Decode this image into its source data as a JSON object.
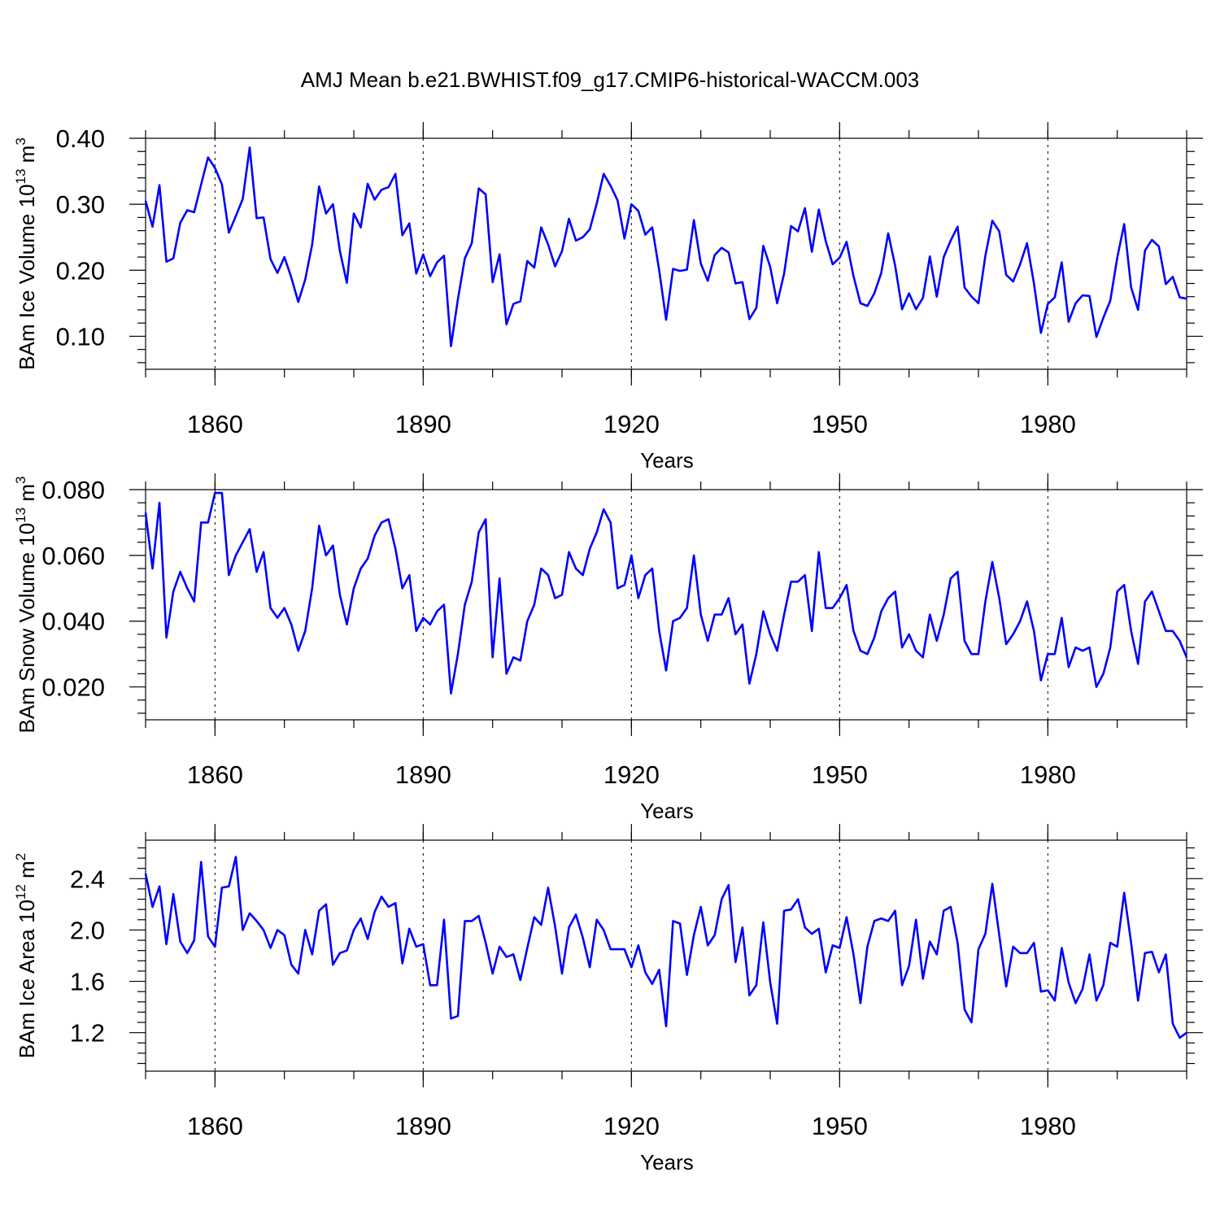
{
  "title": "AMJ Mean b.e21.BWHIST.f09_g17.CMIP6-historical-WACCM.003",
  "chart_data": [
    {
      "type": "line",
      "title": "AMJ Mean b.e21.BWHIST.f09_g17.CMIP6-historical-WACCM.003",
      "xlabel": "Years",
      "ylabel": {
        "main": "BAm Ice Volume 10",
        "exp": "13",
        "unit": " m",
        "unit_exp": "3"
      },
      "xlim": [
        1850,
        2000
      ],
      "ylim": [
        0.05,
        0.4
      ],
      "xticks": [
        1860,
        1890,
        1920,
        1950,
        1980
      ],
      "xtick_labels": [
        "1860",
        "1890",
        "1920",
        "1950",
        "1980"
      ],
      "yticks": [
        0.1,
        0.2,
        0.3,
        0.4
      ],
      "ytick_labels": [
        "0.10",
        "0.20",
        "0.30",
        "0.40"
      ],
      "series": [
        {
          "name": "BAm Ice Volume",
          "start_year": 1850,
          "values": [
            0.305,
            0.266,
            0.329,
            0.213,
            0.218,
            0.272,
            0.291,
            0.288,
            0.33,
            0.371,
            0.355,
            0.33,
            0.257,
            0.282,
            0.308,
            0.386,
            0.279,
            0.28,
            0.217,
            0.196,
            0.22,
            0.189,
            0.152,
            0.186,
            0.239,
            0.327,
            0.286,
            0.3,
            0.229,
            0.181,
            0.286,
            0.265,
            0.331,
            0.307,
            0.322,
            0.326,
            0.346,
            0.253,
            0.271,
            0.195,
            0.224,
            0.191,
            0.212,
            0.222,
            0.085,
            0.156,
            0.218,
            0.241,
            0.324,
            0.315,
            0.182,
            0.224,
            0.118,
            0.149,
            0.153,
            0.214,
            0.204,
            0.265,
            0.239,
            0.206,
            0.229,
            0.278,
            0.245,
            0.25,
            0.262,
            0.301,
            0.346,
            0.328,
            0.306,
            0.248,
            0.3,
            0.29,
            0.254,
            0.265,
            0.2,
            0.125,
            0.202,
            0.199,
            0.201,
            0.276,
            0.21,
            0.184,
            0.223,
            0.234,
            0.227,
            0.18,
            0.182,
            0.126,
            0.143,
            0.237,
            0.205,
            0.15,
            0.195,
            0.267,
            0.259,
            0.294,
            0.228,
            0.292,
            0.244,
            0.209,
            0.219,
            0.243,
            0.191,
            0.15,
            0.146,
            0.165,
            0.196,
            0.256,
            0.207,
            0.141,
            0.165,
            0.141,
            0.158,
            0.221,
            0.16,
            0.22,
            0.245,
            0.266,
            0.174,
            0.16,
            0.15,
            0.222,
            0.275,
            0.259,
            0.193,
            0.183,
            0.209,
            0.241,
            0.18,
            0.105,
            0.149,
            0.159,
            0.212,
            0.122,
            0.15,
            0.162,
            0.161,
            0.099,
            0.128,
            0.154,
            0.219,
            0.27,
            0.174,
            0.14,
            0.23,
            0.246,
            0.236,
            0.179,
            0.19,
            0.159,
            0.157
          ]
        }
      ]
    },
    {
      "type": "line",
      "title": "",
      "xlabel": "Years",
      "ylabel": {
        "main": "BAm Snow Volume 10",
        "exp": "13",
        "unit": " m",
        "unit_exp": "3"
      },
      "xlim": [
        1850,
        2000
      ],
      "ylim": [
        0.01,
        0.08
      ],
      "xticks": [
        1860,
        1890,
        1920,
        1950,
        1980
      ],
      "xtick_labels": [
        "1860",
        "1890",
        "1920",
        "1950",
        "1980"
      ],
      "yticks": [
        0.02,
        0.04,
        0.06,
        0.08
      ],
      "ytick_labels": [
        "0.020",
        "0.040",
        "0.060",
        "0.080"
      ],
      "series": [
        {
          "name": "BAm Snow Volume",
          "start_year": 1850,
          "values": [
            0.073,
            0.056,
            0.076,
            0.035,
            0.049,
            0.055,
            0.05,
            0.046,
            0.07,
            0.07,
            0.079,
            0.079,
            0.054,
            0.06,
            0.064,
            0.068,
            0.055,
            0.061,
            0.044,
            0.041,
            0.044,
            0.039,
            0.031,
            0.037,
            0.05,
            0.069,
            0.06,
            0.063,
            0.048,
            0.039,
            0.05,
            0.056,
            0.059,
            0.066,
            0.07,
            0.071,
            0.062,
            0.05,
            0.054,
            0.037,
            0.041,
            0.039,
            0.043,
            0.045,
            0.018,
            0.03,
            0.045,
            0.052,
            0.067,
            0.071,
            0.029,
            0.053,
            0.024,
            0.029,
            0.028,
            0.04,
            0.045,
            0.056,
            0.054,
            0.047,
            0.048,
            0.061,
            0.056,
            0.054,
            0.062,
            0.067,
            0.074,
            0.07,
            0.05,
            0.051,
            0.06,
            0.047,
            0.054,
            0.056,
            0.037,
            0.025,
            0.04,
            0.041,
            0.044,
            0.06,
            0.042,
            0.034,
            0.042,
            0.042,
            0.047,
            0.036,
            0.039,
            0.021,
            0.03,
            0.043,
            0.036,
            0.031,
            0.042,
            0.052,
            0.052,
            0.054,
            0.037,
            0.061,
            0.044,
            0.044,
            0.047,
            0.051,
            0.037,
            0.031,
            0.03,
            0.035,
            0.043,
            0.047,
            0.049,
            0.032,
            0.036,
            0.031,
            0.029,
            0.042,
            0.034,
            0.042,
            0.053,
            0.055,
            0.034,
            0.03,
            0.03,
            0.046,
            0.058,
            0.047,
            0.033,
            0.036,
            0.04,
            0.046,
            0.037,
            0.022,
            0.03,
            0.03,
            0.041,
            0.026,
            0.032,
            0.031,
            0.032,
            0.02,
            0.024,
            0.032,
            0.049,
            0.051,
            0.037,
            0.027,
            0.046,
            0.049,
            0.043,
            0.037,
            0.037,
            0.034,
            0.029
          ]
        }
      ]
    },
    {
      "type": "line",
      "title": "",
      "xlabel": "Years",
      "ylabel": {
        "main": "BAm Ice Area 10",
        "exp": "12",
        "unit": " m",
        "unit_exp": "2"
      },
      "xlim": [
        1850,
        2000
      ],
      "ylim": [
        0.9,
        2.7
      ],
      "xticks": [
        1860,
        1890,
        1920,
        1950,
        1980
      ],
      "xtick_labels": [
        "1860",
        "1890",
        "1920",
        "1950",
        "1980"
      ],
      "yticks": [
        1.2,
        1.6,
        2.0,
        2.4
      ],
      "ytick_labels": [
        "1.2",
        "1.6",
        "2.0",
        "2.4"
      ],
      "series": [
        {
          "name": "BAm Ice Area",
          "start_year": 1850,
          "values": [
            2.44,
            2.18,
            2.34,
            1.89,
            2.28,
            1.91,
            1.82,
            1.92,
            2.53,
            1.95,
            1.87,
            2.33,
            2.34,
            2.57,
            2.0,
            2.13,
            2.07,
            2.0,
            1.86,
            2.0,
            1.96,
            1.73,
            1.66,
            2.0,
            1.81,
            2.15,
            2.2,
            1.73,
            1.82,
            1.84,
            2.0,
            2.09,
            1.93,
            2.14,
            2.26,
            2.18,
            2.21,
            1.74,
            2.01,
            1.87,
            1.89,
            1.57,
            1.57,
            2.08,
            1.31,
            1.33,
            2.07,
            2.07,
            2.11,
            1.9,
            1.66,
            1.87,
            1.79,
            1.81,
            1.61,
            1.86,
            2.1,
            2.04,
            2.33,
            2.03,
            1.66,
            2.02,
            2.12,
            1.94,
            1.71,
            2.08,
            2.0,
            1.85,
            1.85,
            1.85,
            1.71,
            1.88,
            1.67,
            1.58,
            1.69,
            1.25,
            2.07,
            2.05,
            1.65,
            1.96,
            2.18,
            1.88,
            1.96,
            2.24,
            2.35,
            1.75,
            2.02,
            1.49,
            1.57,
            2.06,
            1.59,
            1.27,
            2.15,
            2.16,
            2.24,
            2.02,
            1.97,
            2.01,
            1.67,
            1.88,
            1.86,
            2.1,
            1.81,
            1.43,
            1.87,
            2.07,
            2.09,
            2.07,
            2.15,
            1.57,
            1.72,
            2.08,
            1.62,
            1.91,
            1.81,
            2.15,
            2.18,
            1.9,
            1.38,
            1.28,
            1.85,
            1.97,
            2.36,
            1.96,
            1.56,
            1.87,
            1.82,
            1.82,
            1.9,
            1.52,
            1.53,
            1.45,
            1.86,
            1.59,
            1.43,
            1.54,
            1.81,
            1.45,
            1.57,
            1.9,
            1.87,
            2.29,
            1.9,
            1.45,
            1.82,
            1.83,
            1.67,
            1.81,
            1.27,
            1.16,
            1.2
          ]
        }
      ]
    }
  ]
}
